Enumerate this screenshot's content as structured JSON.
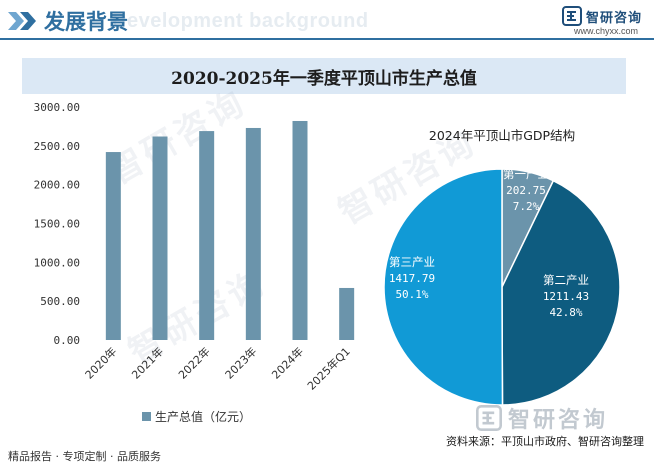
{
  "header": {
    "title": "发展背景",
    "subtitle_ghost": "Development background",
    "brand_name": "智研咨询",
    "brand_url": "www.chyxx.com"
  },
  "title": "2020-2025年一季度平顶山市生产总值",
  "chart_data": [
    {
      "type": "bar",
      "categories": [
        "2020年",
        "2021年",
        "2022年",
        "2023年",
        "2024年",
        "2025年Q1"
      ],
      "values": [
        2420,
        2620,
        2690,
        2730,
        2820,
        670
      ],
      "ylim": [
        0,
        3000
      ],
      "yticks": [
        "0.00",
        "500.00",
        "1000.00",
        "1500.00",
        "2000.00",
        "2500.00",
        "3000.00"
      ],
      "legend": "生产总值（亿元）",
      "legend_position": "bottom",
      "color": "#6b94ab",
      "grid": false
    },
    {
      "type": "pie",
      "title": "2024年平顶山市GDP结构",
      "slices": [
        {
          "label": "第一产业",
          "value": "202.75",
          "percent": "7.2%",
          "color": "#6b94ab"
        },
        {
          "label": "第二产业",
          "value": "1211.43",
          "percent": "42.8%",
          "color": "#0e5c80"
        },
        {
          "label": "第三产业",
          "value": "1417.79",
          "percent": "50.1%",
          "color": "#119ad6"
        }
      ]
    }
  ],
  "footer": {
    "left": "精品报告 · 专项定制 · 品质服务",
    "source": "资料来源：平顶山市政府、智研咨询整理",
    "brand_name": "智研咨询"
  },
  "watermark_text": "智研咨询"
}
